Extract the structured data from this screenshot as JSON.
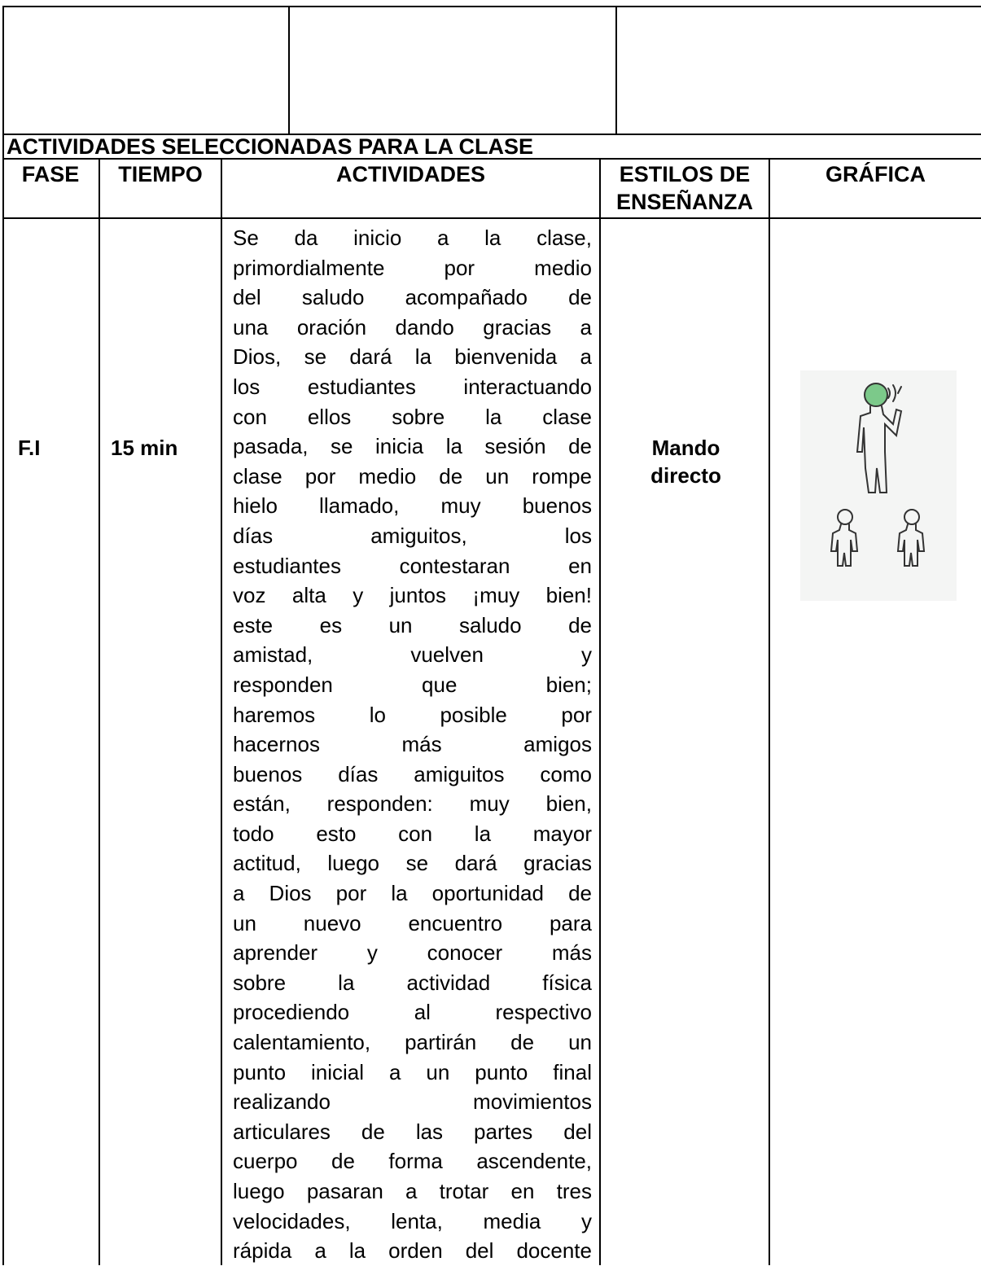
{
  "section_title": "ACTIVIDADES SELECCIONADAS PARA LA CLASE",
  "table": {
    "headers": [
      "FASE",
      "TIEMPO",
      "ACTIVIDADES",
      "ESTILOS DE ENSEÑANZA",
      "GRÁFICA"
    ],
    "rows": [
      {
        "fase": "F.I",
        "tiempo": "15 min",
        "actividades": [
          "Se da inicio a la clase,",
          "primordialmente por medio",
          "del saludo acompañado de",
          "una oración dando gracias a",
          "Dios, se dará la bienvenida a",
          "los estudiantes interactuando",
          "con ellos sobre la clase",
          "pasada, se inicia la sesión de",
          "clase por medio de un rompe",
          "hielo llamado, muy buenos",
          "días amiguitos, los",
          "estudiantes contestaran en",
          "voz alta y juntos ¡muy bien!",
          "este es un saludo de",
          "amistad, vuelven y",
          "responden que bien;",
          "haremos lo posible por",
          "hacernos más amigos",
          "buenos días amiguitos como",
          "están, responden: muy bien,",
          "todo esto con la mayor",
          "actitud, luego se dará gracias",
          "a Dios por la oportunidad de",
          "un nuevo encuentro para",
          "aprender y conocer más",
          "sobre la actividad física",
          "procediendo al respectivo",
          "calentamiento, partirán de un",
          "punto inicial a un punto final",
          "realizando movimientos",
          "articulares de las partes del",
          "cuerpo de forma ascendente,",
          "luego pasaran a trotar en tres",
          "velocidades, lenta, media y",
          "rápida a la orden del docente"
        ],
        "estilos": "Mando directo"
      }
    ]
  }
}
